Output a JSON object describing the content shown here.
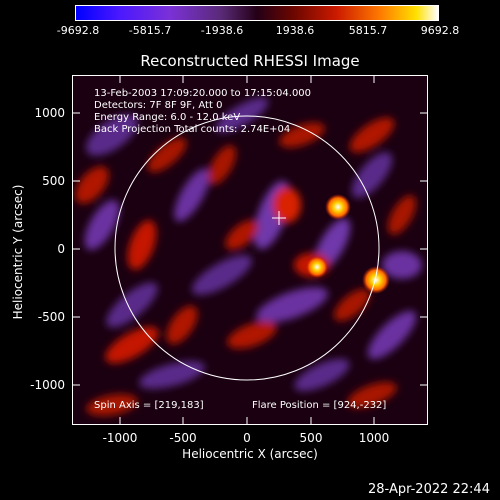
{
  "colorbar": {
    "ticks": [
      "-9692.8",
      "-5815.7",
      "-1938.6",
      "1938.6",
      "5815.7",
      "9692.8"
    ],
    "colormap": [
      "#0000ff",
      "#7b31d6",
      "#240016",
      "#cc1a00",
      "#ffe000",
      "#ffffff"
    ]
  },
  "title": "Reconstructed RHESSI Image",
  "info": {
    "line1": "13-Feb-2003 17:09:20.000 to 17:15:04.000",
    "line2": "Detectors: 7F 8F 9F, Att 0",
    "line3": "Energy Range: 6.0 - 12.0 keV",
    "line4": "Back Projection    Total counts: 2.74E+04",
    "spin_axis": "Spin Axis = [219,183]",
    "flare_position": "Flare Position = [924,-232]"
  },
  "axes": {
    "xlabel": "Heliocentric X (arcsec)",
    "ylabel": "Heliocentric Y (arcsec)",
    "xticks": [
      "-1000",
      "-500",
      "0",
      "500",
      "1000"
    ],
    "yticks": [
      "1000",
      "500",
      "0",
      "-500",
      "-1000"
    ]
  },
  "timestamp": "28-Apr-2022 22:44"
}
